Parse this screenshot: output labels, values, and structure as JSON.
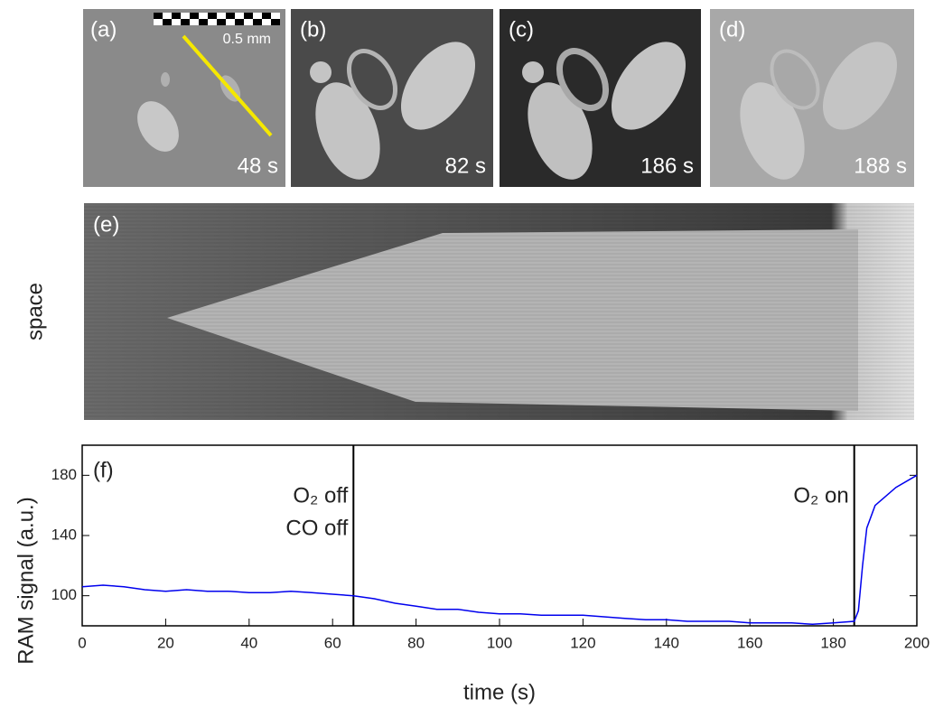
{
  "figure": {
    "panels": [
      {
        "label": "(a)",
        "time": "48 s"
      },
      {
        "label": "(b)",
        "time": "82 s"
      },
      {
        "label": "(c)",
        "time": "186 s"
      },
      {
        "label": "(d)",
        "time": "188 s"
      }
    ],
    "scale_bar": "0.5 mm",
    "panel_e": {
      "label": "(e)",
      "ylabel": "space"
    }
  },
  "chart_data": {
    "type": "line",
    "panel_label": "(f)",
    "xlabel": "time (s)",
    "ylabel": "RAM signal (a.u.)",
    "x": [
      0,
      5,
      10,
      15,
      20,
      25,
      30,
      35,
      40,
      45,
      50,
      55,
      60,
      65,
      70,
      75,
      80,
      85,
      90,
      95,
      100,
      105,
      110,
      115,
      120,
      125,
      130,
      135,
      140,
      145,
      150,
      155,
      160,
      165,
      170,
      175,
      180,
      185,
      186,
      187,
      188,
      190,
      195,
      200
    ],
    "values": [
      106,
      107,
      106,
      104,
      103,
      104,
      103,
      103,
      102,
      102,
      103,
      102,
      101,
      100,
      98,
      95,
      93,
      91,
      91,
      89,
      88,
      88,
      87,
      87,
      87,
      86,
      85,
      84,
      84,
      83,
      83,
      83,
      82,
      82,
      82,
      81,
      82,
      83,
      90,
      120,
      145,
      160,
      172,
      180
    ],
    "color": "#0000ee",
    "xlim": [
      0,
      200
    ],
    "ylim": [
      80,
      200
    ],
    "xticks": [
      0,
      20,
      40,
      60,
      80,
      100,
      120,
      140,
      160,
      180,
      200
    ],
    "yticks": [
      100,
      140,
      180
    ],
    "vlines": [
      65,
      185
    ],
    "annotations": [
      [
        "O₂ off",
        "CO off"
      ],
      [
        "O₂ on"
      ]
    ]
  }
}
